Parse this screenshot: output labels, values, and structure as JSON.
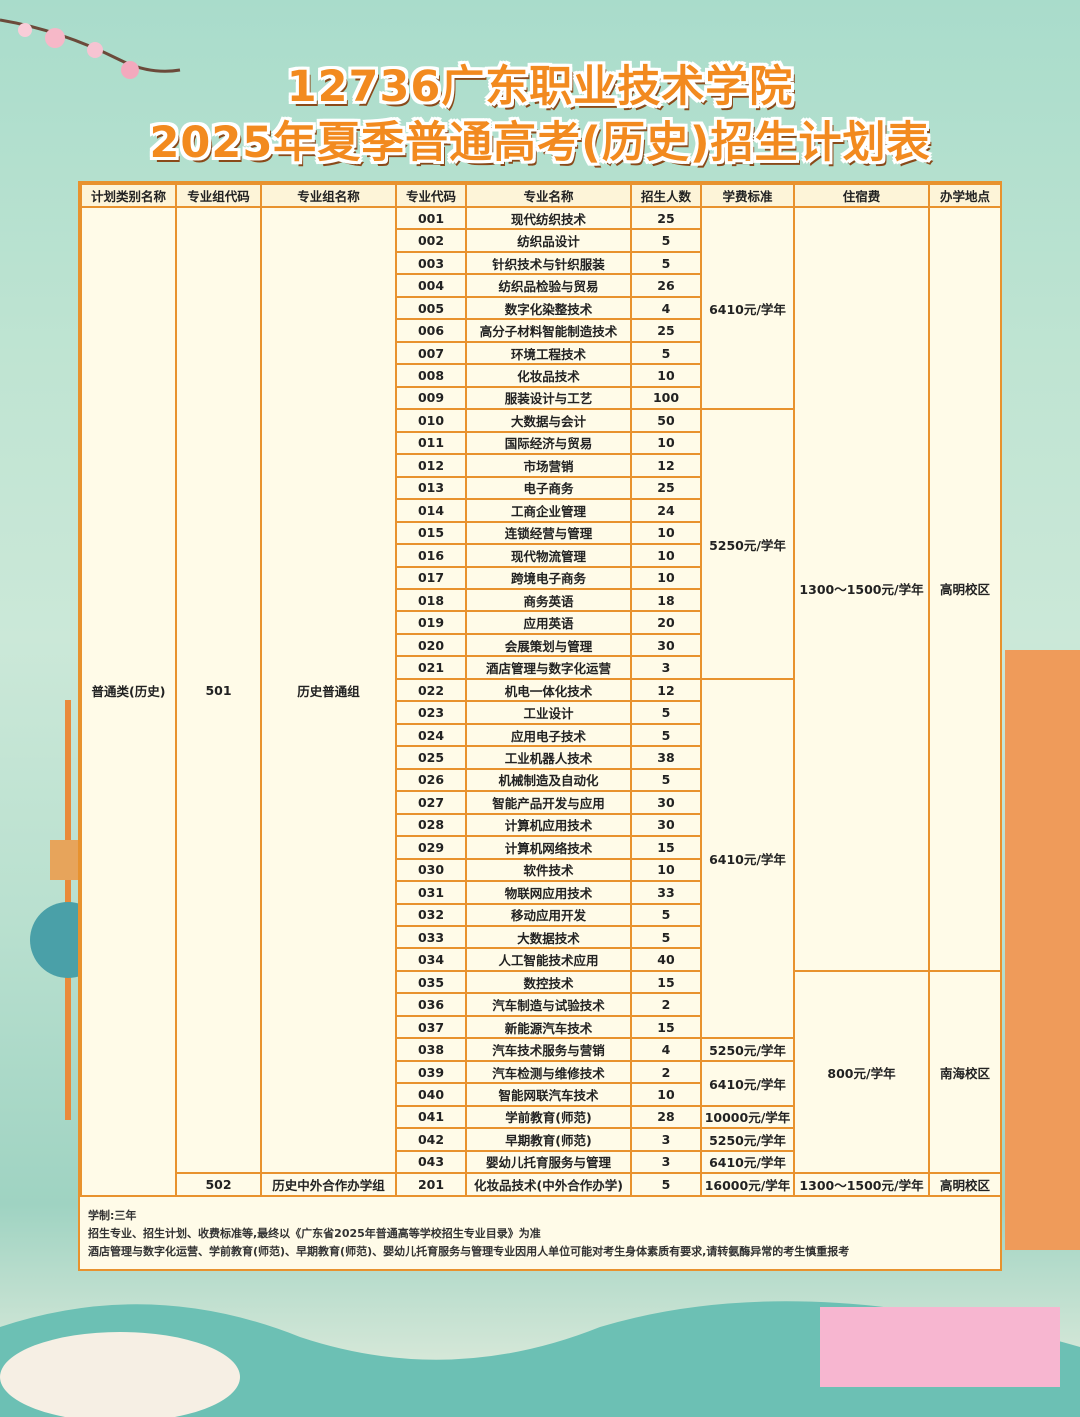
{
  "title": {
    "line1": "12736广东职业技术学院",
    "line2": "2025年夏季普通高考(历史)招生计划表"
  },
  "headers": [
    "计划类别名称",
    "专业组代码",
    "专业组名称",
    "专业代码",
    "专业名称",
    "招生人数",
    "学费标准",
    "住宿费",
    "办学地点"
  ],
  "group501": {
    "category": "普通类(历史)",
    "group_code": "501",
    "group_name": "历史普通组"
  },
  "majors": [
    [
      "001",
      "现代纺织技术",
      "25"
    ],
    [
      "002",
      "纺织品设计",
      "5"
    ],
    [
      "003",
      "针织技术与针织服装",
      "5"
    ],
    [
      "004",
      "纺织品检验与贸易",
      "26"
    ],
    [
      "005",
      "数字化染整技术",
      "4"
    ],
    [
      "006",
      "高分子材料智能制造技术",
      "25"
    ],
    [
      "007",
      "环境工程技术",
      "5"
    ],
    [
      "008",
      "化妆品技术",
      "10"
    ],
    [
      "009",
      "服装设计与工艺",
      "100"
    ],
    [
      "010",
      "大数据与会计",
      "50"
    ],
    [
      "011",
      "国际经济与贸易",
      "10"
    ],
    [
      "012",
      "市场营销",
      "12"
    ],
    [
      "013",
      "电子商务",
      "25"
    ],
    [
      "014",
      "工商企业管理",
      "24"
    ],
    [
      "015",
      "连锁经营与管理",
      "10"
    ],
    [
      "016",
      "现代物流管理",
      "10"
    ],
    [
      "017",
      "跨境电子商务",
      "10"
    ],
    [
      "018",
      "商务英语",
      "18"
    ],
    [
      "019",
      "应用英语",
      "20"
    ],
    [
      "020",
      "会展策划与管理",
      "30"
    ],
    [
      "021",
      "酒店管理与数字化运营",
      "3"
    ],
    [
      "022",
      "机电一体化技术",
      "12"
    ],
    [
      "023",
      "工业设计",
      "5"
    ],
    [
      "024",
      "应用电子技术",
      "5"
    ],
    [
      "025",
      "工业机器人技术",
      "38"
    ],
    [
      "026",
      "机械制造及自动化",
      "5"
    ],
    [
      "027",
      "智能产品开发与应用",
      "30"
    ],
    [
      "028",
      "计算机应用技术",
      "30"
    ],
    [
      "029",
      "计算机网络技术",
      "15"
    ],
    [
      "030",
      "软件技术",
      "10"
    ],
    [
      "031",
      "物联网应用技术",
      "33"
    ],
    [
      "032",
      "移动应用开发",
      "5"
    ],
    [
      "033",
      "大数据技术",
      "5"
    ],
    [
      "034",
      "人工智能技术应用",
      "40"
    ],
    [
      "035",
      "数控技术",
      "15"
    ],
    [
      "036",
      "汽车制造与试验技术",
      "2"
    ],
    [
      "037",
      "新能源汽车技术",
      "15"
    ],
    [
      "038",
      "汽车技术服务与营销",
      "4"
    ],
    [
      "039",
      "汽车检测与维修技术",
      "2"
    ],
    [
      "040",
      "智能网联汽车技术",
      "10"
    ],
    [
      "041",
      "学前教育(师范)",
      "28"
    ],
    [
      "042",
      "早期教育(师范)",
      "3"
    ],
    [
      "043",
      "婴幼儿托育服务与管理",
      "3"
    ]
  ],
  "tuition_spans": [
    [
      "6410元/学年",
      9
    ],
    [
      "5250元/学年",
      12
    ],
    [
      "6410元/学年",
      16
    ],
    [
      "5250元/学年",
      1
    ],
    [
      "6410元/学年",
      2
    ],
    [
      "10000元/学年",
      1
    ],
    [
      "5250元/学年",
      1
    ],
    [
      "6410元/学年",
      1
    ]
  ],
  "dorm_spans": [
    [
      "1300～1500元/学年",
      34
    ],
    [
      "800元/学年",
      9
    ]
  ],
  "location_spans": [
    [
      "高明校区",
      34
    ],
    [
      "南海校区",
      9
    ]
  ],
  "group502": {
    "group_code": "502",
    "group_name": "历史中外合作办学组",
    "code": "201",
    "name": "化妆品技术(中外合作办学)",
    "count": "5",
    "tuition": "16000元/学年",
    "dorm": "1300～1500元/学年",
    "location": "高明校区"
  },
  "notes": [
    "学制:三年",
    "招生专业、招生计划、收费标准等,最终以《广东省2025年普通高等学校招生专业目录》为准",
    "酒店管理与数字化运营、学前教育(师范)、早期教育(师范)、婴幼儿托育服务与管理专业因用人单位可能对考生身体素质有要求,请转氨酶异常的考生慎重报考"
  ],
  "colors": {
    "accent": "#e8922e",
    "title": "#f28a1f",
    "table_bg": "#fffbe8"
  }
}
